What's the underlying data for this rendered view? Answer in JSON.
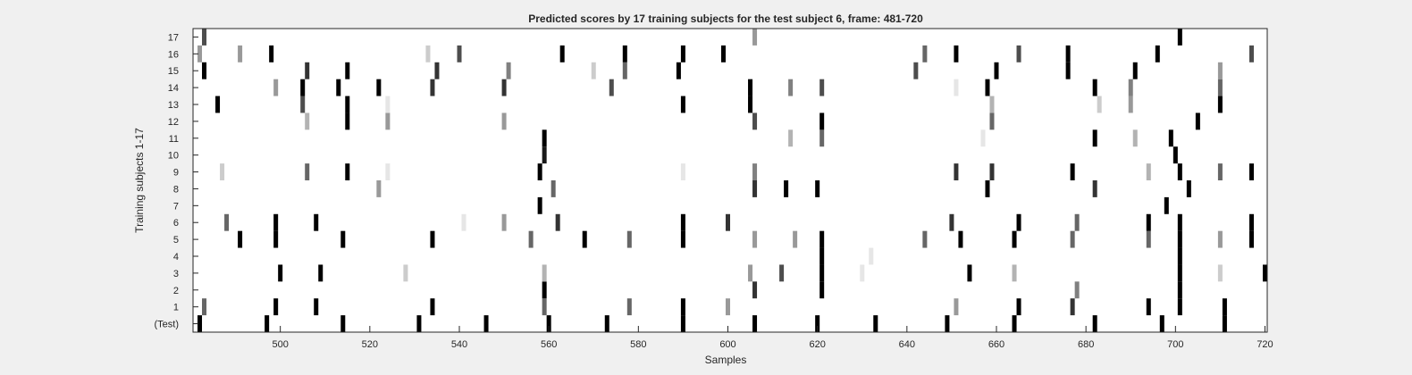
{
  "chart_data": {
    "type": "heatmap",
    "title": "Predicted scores by 17 training subjects for the test subject 6, frame: 481-720",
    "xlabel": "Samples",
    "ylabel": "Training subjects 1-17",
    "xlim": [
      481,
      720
    ],
    "x_ticks": [
      500,
      520,
      540,
      560,
      580,
      600,
      620,
      640,
      660,
      680,
      700,
      720
    ],
    "rows": [
      "(Test)",
      "1",
      "2",
      "3",
      "4",
      "5",
      "6",
      "7",
      "8",
      "9",
      "10",
      "11",
      "12",
      "13",
      "14",
      "15",
      "16",
      "17"
    ],
    "colormap": "gray (0 = white, 1 = black)",
    "grid": false,
    "cells": [
      {
        "row": "(Test)",
        "marks": [
          [
            482,
            1
          ],
          [
            497,
            1
          ],
          [
            514,
            1
          ],
          [
            531,
            1
          ],
          [
            546,
            1
          ],
          [
            560,
            1
          ],
          [
            573,
            1
          ],
          [
            590,
            1
          ],
          [
            606,
            1
          ],
          [
            620,
            1
          ],
          [
            633,
            1
          ],
          [
            649,
            1
          ],
          [
            664,
            1
          ],
          [
            682,
            1
          ],
          [
            697,
            1
          ],
          [
            711,
            1
          ]
        ]
      },
      {
        "row": "1",
        "marks": [
          [
            483,
            0.6
          ],
          [
            499,
            1
          ],
          [
            508,
            1
          ],
          [
            534,
            1
          ],
          [
            559,
            0.6
          ],
          [
            578,
            0.6
          ],
          [
            590,
            1
          ],
          [
            600,
            0.4
          ],
          [
            651,
            0.4
          ],
          [
            665,
            1
          ],
          [
            677,
            0.8
          ],
          [
            694,
            1
          ],
          [
            701,
            1
          ],
          [
            711,
            1
          ]
        ]
      },
      {
        "row": "2",
        "marks": [
          [
            559,
            1
          ],
          [
            606,
            0.8
          ],
          [
            621,
            1
          ],
          [
            678,
            0.5
          ],
          [
            701,
            1
          ]
        ]
      },
      {
        "row": "3",
        "marks": [
          [
            500,
            1
          ],
          [
            509,
            1
          ],
          [
            528,
            0.2
          ],
          [
            559,
            0.3
          ],
          [
            605,
            0.4
          ],
          [
            612,
            0.7
          ],
          [
            621,
            1
          ],
          [
            630,
            0.1
          ],
          [
            654,
            1
          ],
          [
            664,
            0.3
          ],
          [
            701,
            1
          ],
          [
            710,
            0.2
          ],
          [
            720,
            1
          ]
        ]
      },
      {
        "row": "4",
        "marks": [
          [
            621,
            1
          ],
          [
            632,
            0.1
          ],
          [
            701,
            1
          ]
        ]
      },
      {
        "row": "5",
        "marks": [
          [
            491,
            1
          ],
          [
            499,
            1
          ],
          [
            514,
            1
          ],
          [
            534,
            1
          ],
          [
            556,
            0.6
          ],
          [
            568,
            1
          ],
          [
            578,
            0.6
          ],
          [
            590,
            1
          ],
          [
            606,
            0.4
          ],
          [
            615,
            0.4
          ],
          [
            621,
            1
          ],
          [
            644,
            0.6
          ],
          [
            652,
            1
          ],
          [
            664,
            1
          ],
          [
            677,
            0.6
          ],
          [
            694,
            0.6
          ],
          [
            701,
            1
          ],
          [
            710,
            0.4
          ],
          [
            717,
            1
          ]
        ]
      },
      {
        "row": "6",
        "marks": [
          [
            488,
            0.6
          ],
          [
            499,
            1
          ],
          [
            508,
            1
          ],
          [
            541,
            0.1
          ],
          [
            550,
            0.4
          ],
          [
            562,
            0.8
          ],
          [
            590,
            1
          ],
          [
            600,
            0.8
          ],
          [
            650,
            0.8
          ],
          [
            665,
            1
          ],
          [
            678,
            0.6
          ],
          [
            694,
            1
          ],
          [
            701,
            1
          ],
          [
            717,
            1
          ]
        ]
      },
      {
        "row": "7",
        "marks": [
          [
            558,
            1
          ],
          [
            698,
            1
          ]
        ]
      },
      {
        "row": "8",
        "marks": [
          [
            522,
            0.4
          ],
          [
            561,
            0.6
          ],
          [
            606,
            0.8
          ],
          [
            613,
            1
          ],
          [
            620,
            1
          ],
          [
            658,
            1
          ],
          [
            682,
            0.8
          ],
          [
            703,
            1
          ]
        ]
      },
      {
        "row": "9",
        "marks": [
          [
            487,
            0.2
          ],
          [
            506,
            0.6
          ],
          [
            515,
            1
          ],
          [
            524,
            0.1
          ],
          [
            558,
            1
          ],
          [
            590,
            0.1
          ],
          [
            606,
            0.5
          ],
          [
            651,
            0.8
          ],
          [
            659,
            0.8
          ],
          [
            677,
            1
          ],
          [
            694,
            0.3
          ],
          [
            701,
            1
          ],
          [
            710,
            0.6
          ],
          [
            717,
            1
          ]
        ]
      },
      {
        "row": "10",
        "marks": [
          [
            559,
            0.9
          ],
          [
            700,
            1
          ]
        ]
      },
      {
        "row": "11",
        "marks": [
          [
            559,
            1
          ],
          [
            614,
            0.3
          ],
          [
            621,
            0.6
          ],
          [
            657,
            0.1
          ],
          [
            682,
            1
          ],
          [
            691,
            0.3
          ],
          [
            699,
            1
          ]
        ]
      },
      {
        "row": "12",
        "marks": [
          [
            506,
            0.3
          ],
          [
            515,
            1
          ],
          [
            524,
            0.4
          ],
          [
            550,
            0.4
          ],
          [
            606,
            0.7
          ],
          [
            621,
            1
          ],
          [
            659,
            0.6
          ],
          [
            705,
            1
          ]
        ]
      },
      {
        "row": "13",
        "marks": [
          [
            486,
            1
          ],
          [
            505,
            0.7
          ],
          [
            515,
            1
          ],
          [
            524,
            0.1
          ],
          [
            590,
            1
          ],
          [
            605,
            1
          ],
          [
            659,
            0.3
          ],
          [
            683,
            0.2
          ],
          [
            690,
            0.4
          ],
          [
            710,
            1
          ]
        ]
      },
      {
        "row": "14",
        "marks": [
          [
            499,
            0.4
          ],
          [
            505,
            1
          ],
          [
            513,
            1
          ],
          [
            522,
            1
          ],
          [
            534,
            0.8
          ],
          [
            550,
            0.8
          ],
          [
            574,
            0.7
          ],
          [
            605,
            1
          ],
          [
            614,
            0.5
          ],
          [
            621,
            0.7
          ],
          [
            651,
            0.1
          ],
          [
            658,
            1
          ],
          [
            682,
            1
          ],
          [
            690,
            0.5
          ],
          [
            710,
            0.6
          ]
        ]
      },
      {
        "row": "15",
        "marks": [
          [
            483,
            1
          ],
          [
            506,
            0.8
          ],
          [
            515,
            1
          ],
          [
            535,
            0.8
          ],
          [
            551,
            0.5
          ],
          [
            570,
            0.2
          ],
          [
            577,
            0.6
          ],
          [
            589,
            1
          ],
          [
            642,
            0.7
          ],
          [
            660,
            1
          ],
          [
            676,
            1
          ],
          [
            691,
            1
          ],
          [
            710,
            0.4
          ]
        ]
      },
      {
        "row": "16",
        "marks": [
          [
            482,
            0.4
          ],
          [
            491,
            0.4
          ],
          [
            498,
            1
          ],
          [
            533,
            0.2
          ],
          [
            540,
            0.7
          ],
          [
            563,
            1
          ],
          [
            577,
            1
          ],
          [
            590,
            1
          ],
          [
            599,
            1
          ],
          [
            644,
            0.6
          ],
          [
            651,
            1
          ],
          [
            665,
            0.7
          ],
          [
            676,
            1
          ],
          [
            696,
            1
          ],
          [
            717,
            0.7
          ]
        ]
      },
      {
        "row": "17",
        "marks": [
          [
            483,
            0.7
          ],
          [
            606,
            0.4
          ],
          [
            701,
            1
          ]
        ]
      }
    ]
  }
}
